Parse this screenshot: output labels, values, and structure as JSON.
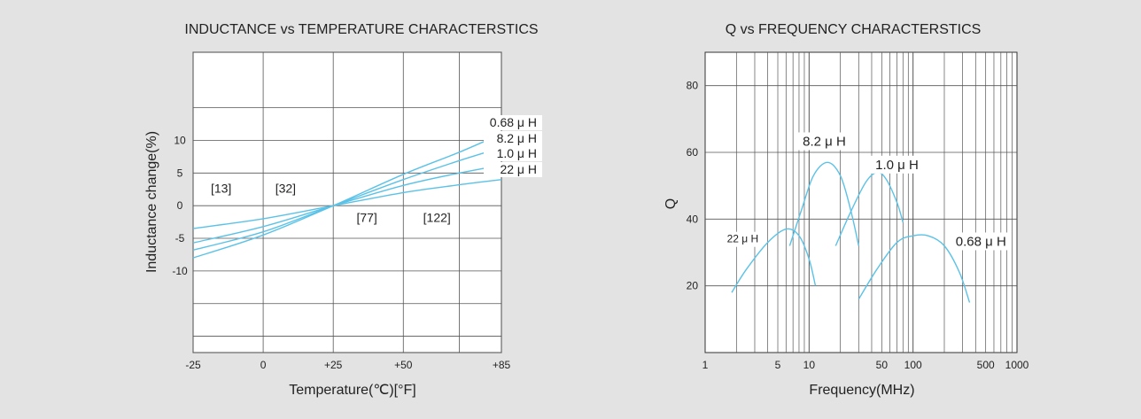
{
  "chart_data": [
    {
      "type": "line",
      "title": "INDUCTANCE vs TEMPERATURE CHARACTERSTICS",
      "xlabel": "Temperature(℃)[°F]",
      "ylabel": "Inductance change(%)",
      "xlim": [
        -25,
        85
      ],
      "ylim": [
        -22.5,
        23.5
      ],
      "x_ticks": [
        {
          "value": -25,
          "label": "-25"
        },
        {
          "value": 0,
          "label": "0"
        },
        {
          "value": 25,
          "label": "+25"
        },
        {
          "value": 50,
          "label": "+50"
        },
        {
          "value": 85,
          "label": "+85"
        }
      ],
      "y_ticks": [
        {
          "value": 10,
          "label": "10"
        },
        {
          "value": 5,
          "label": "5"
        },
        {
          "value": 0,
          "label": "0"
        },
        {
          "value": -5,
          "label": "-5"
        },
        {
          "value": -10,
          "label": "-10"
        }
      ],
      "grid": true,
      "x_grid": [
        -25,
        0,
        25,
        50,
        70,
        85
      ],
      "y_grid": [
        23.5,
        15,
        10,
        5,
        0,
        -5,
        -10,
        -15,
        -20,
        -22.5
      ],
      "annotations": [
        {
          "text": "[13]",
          "x": -15,
          "y": 2
        },
        {
          "text": "[32]",
          "x": 8,
          "y": 2
        },
        {
          "text": "[77]",
          "x": 37,
          "y": -2.5
        },
        {
          "text": "[122]",
          "x": 62,
          "y": -2.5
        }
      ],
      "series": [
        {
          "name": "0.68 μ H",
          "color": "#5bc2e7",
          "x": [
            -25,
            0,
            25,
            50,
            70,
            85
          ],
          "y": [
            -8,
            -4.5,
            0,
            4.8,
            8.2,
            11
          ]
        },
        {
          "name": "8.2 μ H",
          "color": "#5bc2e7",
          "x": [
            -25,
            0,
            25,
            50,
            70,
            85
          ],
          "y": [
            -6.8,
            -4,
            0,
            4,
            6.9,
            8.9
          ]
        },
        {
          "name": "1.0 μ H",
          "color": "#5bc2e7",
          "x": [
            -25,
            0,
            25,
            50,
            70,
            85
          ],
          "y": [
            -5.7,
            -3.2,
            0,
            3.1,
            5,
            6.2
          ]
        },
        {
          "name": "22 μ H",
          "color": "#5bc2e7",
          "x": [
            -25,
            0,
            25,
            50,
            70,
            85
          ],
          "y": [
            -3.5,
            -2,
            0,
            2,
            3.2,
            4
          ]
        }
      ]
    },
    {
      "type": "line",
      "title": "Q vs FREQUENCY CHARACTERSTICS",
      "xlabel": "Frequency(MHz)",
      "ylabel": "Q",
      "x_scale": "log",
      "xlim": [
        1,
        1000
      ],
      "ylim": [
        0,
        90
      ],
      "x_ticks": [
        {
          "value": 1,
          "label": "1"
        },
        {
          "value": 5,
          "label": "5"
        },
        {
          "value": 10,
          "label": "10"
        },
        {
          "value": 50,
          "label": "50"
        },
        {
          "value": 100,
          "label": "100"
        },
        {
          "value": 500,
          "label": "500"
        },
        {
          "value": 1000,
          "label": "1000"
        }
      ],
      "y_ticks": [
        {
          "value": 80,
          "label": "80"
        },
        {
          "value": 60,
          "label": "60"
        },
        {
          "value": 40,
          "label": "40"
        },
        {
          "value": 20,
          "label": "20"
        }
      ],
      "grid": true,
      "series": [
        {
          "name": "22 μ H",
          "color": "#5bc2e7",
          "x": [
            1.8,
            2.5,
            4,
            6,
            8,
            10,
            11.5
          ],
          "y": [
            18,
            25,
            33,
            37,
            35,
            28,
            20
          ]
        },
        {
          "name": "8.2 μ H",
          "color": "#5bc2e7",
          "x": [
            6.5,
            8.5,
            11,
            15,
            20,
            25,
            30
          ],
          "y": [
            32,
            43,
            53,
            57,
            53,
            43,
            32
          ]
        },
        {
          "name": "1.0 μ H",
          "color": "#5bc2e7",
          "x": [
            18,
            25,
            35,
            45,
            55,
            70,
            80
          ],
          "y": [
            32,
            42,
            51,
            54,
            52,
            45,
            39
          ]
        },
        {
          "name": "0.68 μ H",
          "color": "#5bc2e7",
          "x": [
            30,
            45,
            70,
            100,
            140,
            200,
            280,
            350
          ],
          "y": [
            16,
            25,
            33,
            35,
            35,
            32,
            24,
            15
          ]
        }
      ],
      "annotations": [
        {
          "text": "8.2 μ H",
          "x": 14,
          "y": 62
        },
        {
          "text": "1.0 μ H",
          "x": 70,
          "y": 55
        },
        {
          "text": "22 μ H",
          "x": 2.3,
          "y": 33
        },
        {
          "text": "0.68 μ H",
          "x": 450,
          "y": 32
        }
      ]
    }
  ]
}
